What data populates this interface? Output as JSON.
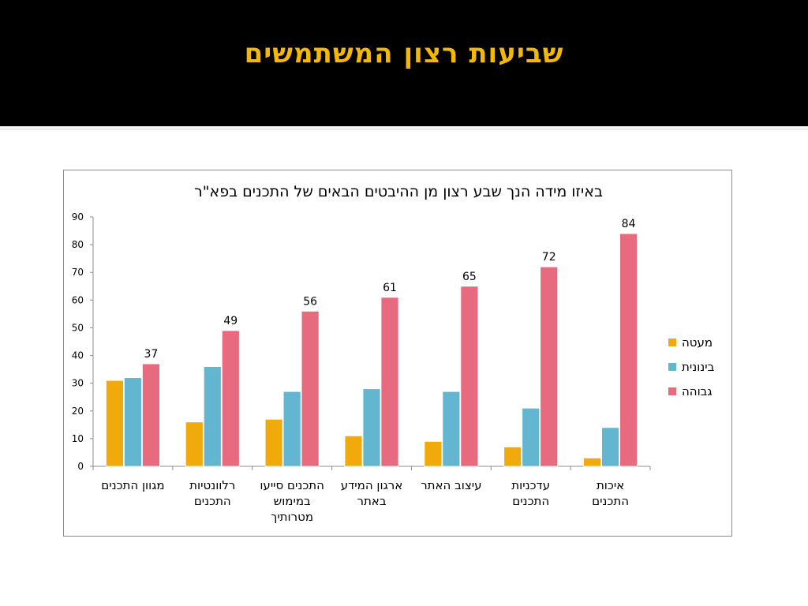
{
  "slide": {
    "title": "שביעות רצון המשתמשים"
  },
  "colors": {
    "title": "#F5B800",
    "low": "#F0AA0B",
    "medium": "#62B6CF",
    "high": "#E76A7F"
  },
  "chart_data": {
    "type": "bar",
    "title": "באיזו מידה הנך שבע רצון מן ההיבטים הבאים של התכנים בפא\"ר",
    "categories": [
      "מגוון התכנים",
      "רלוונטיות התכנים",
      "התכנים סייעו במימוש מטרותיך",
      "ארגון המידע באתר",
      "עיצוב האתר",
      "עדכניות התכנים",
      "איכות התכנים"
    ],
    "category_lines": [
      [
        "מגוון התכנים"
      ],
      [
        "רלוונטיות",
        "התכנים"
      ],
      [
        "התכנים סייעו",
        "במימוש",
        "מטרותיך"
      ],
      [
        "ארגון המידע",
        "באתר"
      ],
      [
        "עיצוב האתר"
      ],
      [
        "עדכניות",
        "התכנים"
      ],
      [
        "איכות",
        "התכנים"
      ]
    ],
    "series": [
      {
        "name": "מעטה",
        "values": [
          31,
          16,
          17,
          11,
          9,
          7,
          3
        ],
        "color": "#F0AA0B"
      },
      {
        "name": "בינונית",
        "values": [
          32,
          36,
          27,
          28,
          27,
          21,
          14
        ],
        "color": "#62B6CF"
      },
      {
        "name": "גבוהה",
        "values": [
          37,
          49,
          56,
          61,
          65,
          72,
          84
        ],
        "color": "#E76A7F"
      }
    ],
    "data_labels_series": "גבוהה",
    "data_labels": [
      37,
      49,
      56,
      61,
      65,
      72,
      84
    ],
    "ylim": [
      0,
      90
    ],
    "yticks": [
      0,
      10,
      20,
      30,
      40,
      50,
      60,
      70,
      80,
      90
    ],
    "grid": false,
    "legend_position": "right"
  }
}
